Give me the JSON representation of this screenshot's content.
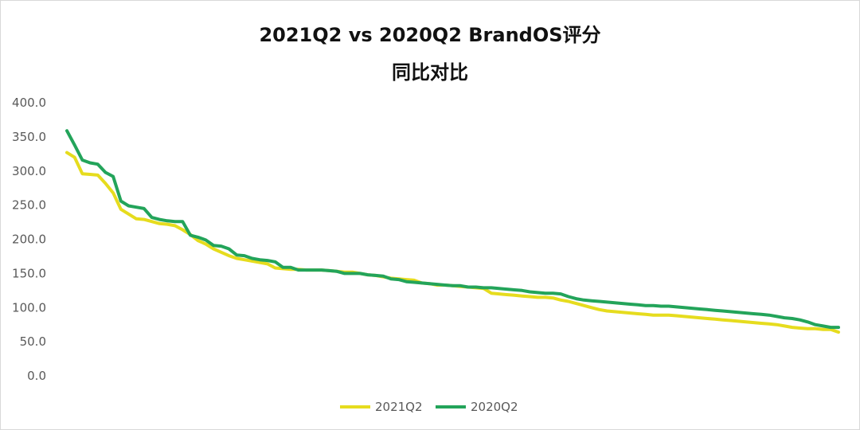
{
  "chart_data": {
    "type": "line",
    "title": "2021Q2 vs 2020Q2 BrandOS评分",
    "subtitle": "同比对比",
    "xlabel": "",
    "ylabel": "",
    "ylim": [
      0,
      400
    ],
    "yticks": [
      "0.0",
      "50.0",
      "100.0",
      "150.0",
      "200.0",
      "250.0",
      "300.0",
      "350.0",
      "400.0"
    ],
    "grid": false,
    "legend_position": "bottom",
    "series": [
      {
        "name": "2021Q2",
        "color": "#e6dc1e",
        "values": [
          327,
          320,
          296,
          295,
          294,
          282,
          268,
          244,
          237,
          230,
          229,
          226,
          223,
          222,
          220,
          214,
          207,
          198,
          193,
          186,
          181,
          176,
          172,
          170,
          168,
          166,
          164,
          158,
          157,
          156,
          156,
          155,
          155,
          155,
          154,
          153,
          152,
          152,
          150,
          148,
          147,
          145,
          143,
          142,
          141,
          140,
          136,
          135,
          133,
          133,
          132,
          131,
          130,
          129,
          128,
          121,
          120,
          119,
          118,
          117,
          116,
          115,
          115,
          114,
          111,
          109,
          106,
          103,
          100,
          97,
          95,
          94,
          93,
          92,
          91,
          90,
          89,
          89,
          89,
          88,
          87,
          86,
          85,
          84,
          83,
          82,
          81,
          80,
          79,
          78,
          77,
          76,
          75,
          73,
          71,
          70,
          69,
          69,
          68,
          68,
          64
        ]
      },
      {
        "name": "2020Q2",
        "color": "#23a45a",
        "values": [
          359,
          338,
          316,
          312,
          310,
          298,
          292,
          256,
          249,
          247,
          245,
          232,
          229,
          227,
          226,
          226,
          206,
          203,
          199,
          191,
          190,
          186,
          177,
          176,
          172,
          170,
          169,
          167,
          159,
          159,
          155,
          155,
          155,
          155,
          154,
          153,
          150,
          150,
          150,
          148,
          147,
          146,
          142,
          141,
          138,
          137,
          136,
          135,
          134,
          133,
          132,
          132,
          130,
          130,
          129,
          129,
          128,
          127,
          126,
          125,
          123,
          122,
          121,
          121,
          120,
          116,
          113,
          111,
          110,
          109,
          108,
          107,
          106,
          105,
          104,
          103,
          103,
          102,
          102,
          101,
          100,
          99,
          98,
          97,
          96,
          95,
          94,
          93,
          92,
          91,
          90,
          89,
          87,
          85,
          84,
          82,
          79,
          75,
          73,
          71,
          71
        ]
      }
    ]
  }
}
